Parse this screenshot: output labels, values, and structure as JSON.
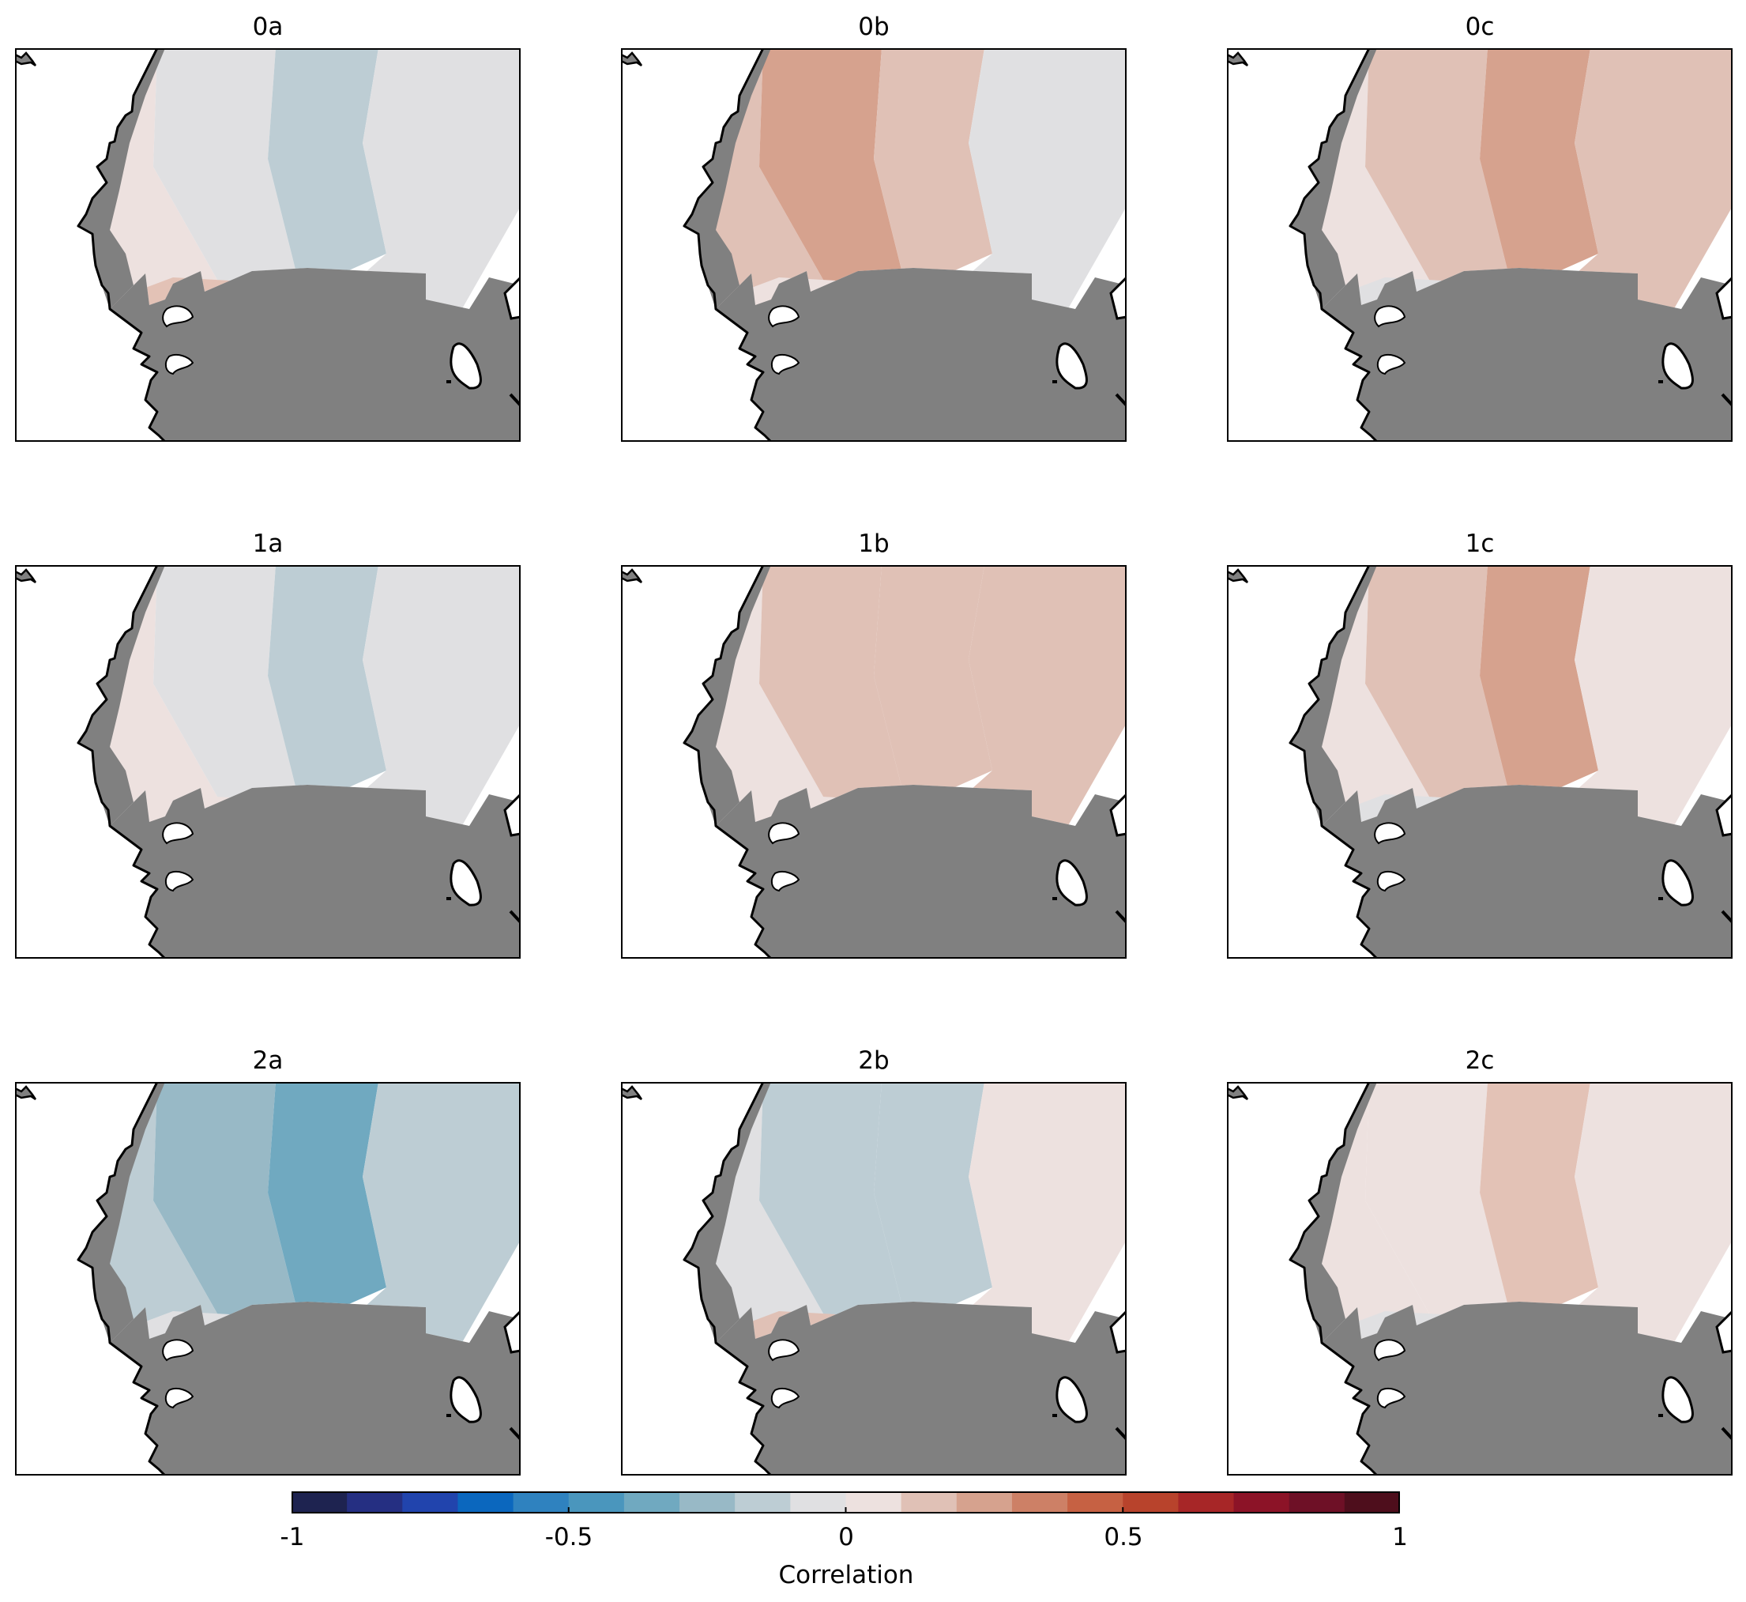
{
  "panels": [
    {
      "id": "0a",
      "title": "0a",
      "fill": [
        "#ede1df",
        "#e0e0e2",
        "#bdcdd4",
        "#e0e0e2",
        "#e3c2b6"
      ]
    },
    {
      "id": "0b",
      "title": "0b",
      "fill": [
        "#e0c1b6",
        "#d6a28e",
        "#e0c1b6",
        "#e0e0e2",
        "#ede1df"
      ]
    },
    {
      "id": "0c",
      "title": "0c",
      "fill": [
        "#ede1df",
        "#e0c1b6",
        "#d6a28e",
        "#e0c1b6",
        "#e0e0e2"
      ]
    },
    {
      "id": "1a",
      "title": "1a",
      "fill": [
        "#ede1df",
        "#e0e0e2",
        "#bdcdd4",
        "#e0e0e2",
        "#ede1df"
      ]
    },
    {
      "id": "1b",
      "title": "1b",
      "fill": [
        "#ede1df",
        "#e0c1b6",
        "#e0c1b6",
        "#e0c1b6",
        "#ede1df"
      ]
    },
    {
      "id": "1c",
      "title": "1c",
      "fill": [
        "#ede1df",
        "#e0c1b6",
        "#d6a28e",
        "#ede1df",
        "#e0e0e2"
      ]
    },
    {
      "id": "2a",
      "title": "2a",
      "fill": [
        "#bdcdd4",
        "#98b9c6",
        "#70a9c0",
        "#bdcdd4",
        "#e0e0e2"
      ]
    },
    {
      "id": "2b",
      "title": "2b",
      "fill": [
        "#e0e0e2",
        "#bdcdd4",
        "#bdcdd4",
        "#ede1df",
        "#e0c1b6"
      ]
    },
    {
      "id": "2c",
      "title": "2c",
      "fill": [
        "#ede1df",
        "#ede1df",
        "#e3c2b6",
        "#ede1df",
        "#e0e0e2"
      ]
    }
  ],
  "colors": {
    "land": "#808080",
    "land_outline": "#000000",
    "frame": "#000000"
  },
  "colorbar": {
    "label": "Correlation",
    "ticks": [
      "-1",
      "-0.5",
      "0",
      "0.5",
      "1"
    ],
    "tick_values": [
      -1,
      -0.5,
      0,
      0.5,
      1
    ],
    "range": [
      -1,
      1
    ],
    "bins": [
      "#1e2350",
      "#252f82",
      "#2144ad",
      "#0b67be",
      "#2f82bf",
      "#4a96bd",
      "#70a9c0",
      "#98b9c6",
      "#bdcdd4",
      "#e0e0e2",
      "#ede1df",
      "#e0c1b6",
      "#d6a28e",
      "#cd8066",
      "#c66143",
      "#b8432c",
      "#a72627",
      "#8c1327",
      "#6e1026",
      "#4e0e1c"
    ]
  }
}
